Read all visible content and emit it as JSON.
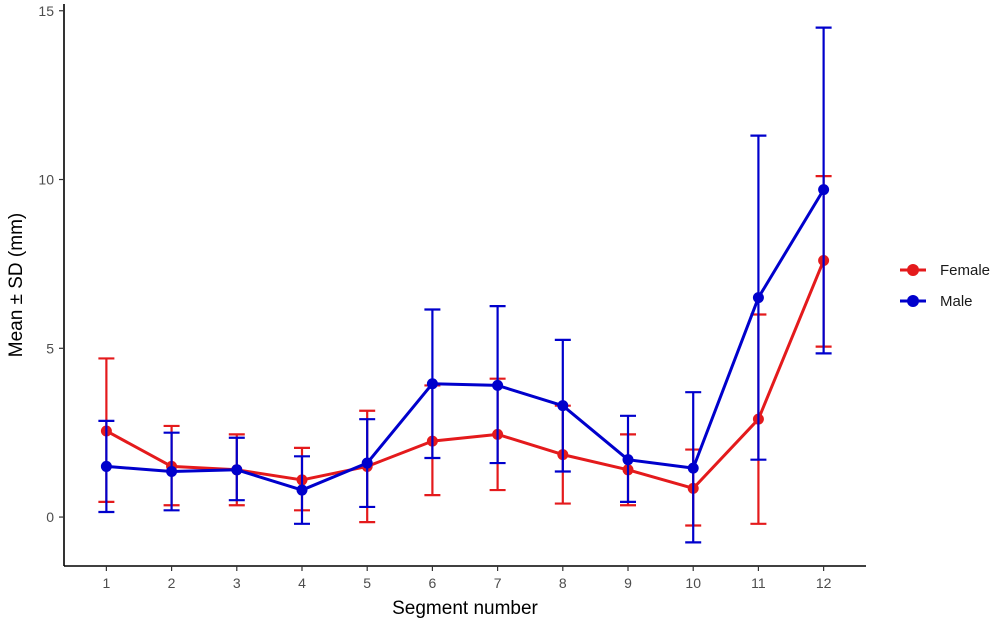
{
  "chart_data": {
    "type": "line",
    "xlabel": "Segment number",
    "ylabel": "Mean ± SD (mm)",
    "x": [
      1,
      2,
      3,
      4,
      5,
      6,
      7,
      8,
      9,
      10,
      11,
      12
    ],
    "xlim": [
      0.35,
      12.65
    ],
    "ylim": [
      -1.45,
      15.2
    ],
    "yticks": [
      0,
      5,
      10,
      15
    ],
    "grid": false,
    "legend_position": "right",
    "series": [
      {
        "name": "Female",
        "color": "#e41a1c",
        "mean": [
          2.55,
          1.5,
          1.4,
          1.1,
          1.5,
          2.25,
          2.45,
          1.85,
          1.4,
          0.85,
          2.9,
          7.6
        ],
        "sd_low": [
          0.45,
          0.35,
          0.35,
          0.2,
          -0.15,
          0.65,
          0.8,
          0.4,
          0.35,
          -0.25,
          -0.2,
          5.05
        ],
        "sd_high": [
          4.7,
          2.7,
          2.45,
          2.05,
          3.15,
          3.9,
          4.1,
          3.3,
          2.45,
          2.0,
          6.0,
          10.1
        ]
      },
      {
        "name": "Male",
        "color": "#0000cc",
        "mean": [
          1.5,
          1.35,
          1.4,
          0.8,
          1.6,
          3.95,
          3.9,
          3.3,
          1.7,
          1.45,
          6.5,
          9.7
        ],
        "sd_low": [
          0.15,
          0.2,
          0.5,
          -0.2,
          0.3,
          1.75,
          1.6,
          1.35,
          0.45,
          -0.75,
          1.7,
          4.85
        ],
        "sd_high": [
          2.85,
          2.5,
          2.35,
          1.8,
          2.9,
          6.15,
          6.25,
          5.25,
          3.0,
          3.7,
          11.3,
          14.5
        ]
      }
    ]
  }
}
